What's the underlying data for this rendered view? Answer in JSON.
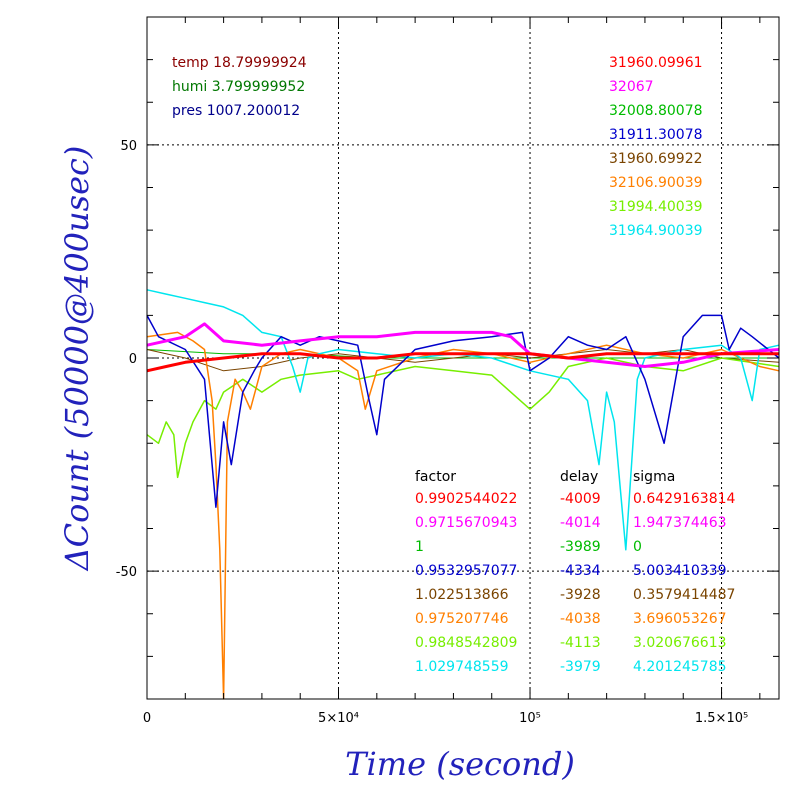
{
  "chart_data": {
    "type": "line",
    "xlabel": "Time (second)",
    "ylabel": "ΔCount (50000@400usec)",
    "xlim": [
      0,
      165000
    ],
    "ylim": [
      -80,
      80
    ],
    "xticks": [
      {
        "value": 0,
        "label": "0"
      },
      {
        "value": 50000,
        "label": "5×10⁴"
      },
      {
        "value": 100000,
        "label": "10⁵"
      },
      {
        "value": 150000,
        "label": "1.5×10⁵"
      }
    ],
    "yticks": [
      {
        "value": 50,
        "label": "50"
      },
      {
        "value": 0,
        "label": "0"
      },
      {
        "value": -50,
        "label": "-50"
      }
    ],
    "grid": true,
    "env": [
      {
        "text": "temp 18.79999924",
        "color": "#8b0000"
      },
      {
        "text": "humi 3.799999952",
        "color": "#007700"
      },
      {
        "text": "pres 1007.200012",
        "color": "#00008b"
      }
    ],
    "means": [
      "31960.09961",
      "32067",
      "32008.80078",
      "31911.30078",
      "31960.69922",
      "32106.90039",
      "31994.40039",
      "31964.90039"
    ],
    "stats_header": [
      "factor",
      "delay",
      "sigma"
    ],
    "factors": [
      "0.9902544022",
      "0.9715670943",
      "1",
      "0.9532957077",
      "1.022513866",
      "0.975207746",
      "0.9848542809",
      "1.029748559"
    ],
    "delays": [
      "-4009",
      "-4014",
      "-3989",
      "-4334",
      "-3928",
      "-4038",
      "-4113",
      "-3979"
    ],
    "sigmas": [
      "0.6429163814",
      "1.947374463",
      "0",
      "5.003410339",
      "0.3579414487",
      "3.696053267",
      "3.020676613",
      "4.201245785"
    ],
    "series": [
      {
        "color": "#ff0000",
        "values": [
          [
            0,
            -3
          ],
          [
            5000,
            -2
          ],
          [
            10000,
            -1
          ],
          [
            20000,
            0
          ],
          [
            30000,
            1
          ],
          [
            40000,
            1
          ],
          [
            50000,
            0
          ],
          [
            60000,
            0
          ],
          [
            70000,
            1
          ],
          [
            80000,
            1
          ],
          [
            90000,
            1
          ],
          [
            100000,
            1
          ],
          [
            110000,
            0
          ],
          [
            120000,
            1
          ],
          [
            130000,
            1
          ],
          [
            140000,
            1
          ],
          [
            150000,
            1
          ],
          [
            165000,
            1
          ]
        ]
      },
      {
        "color": "#ff00ff",
        "values": [
          [
            0,
            3
          ],
          [
            10000,
            5
          ],
          [
            15000,
            8
          ],
          [
            20000,
            4
          ],
          [
            30000,
            3
          ],
          [
            40000,
            4
          ],
          [
            50000,
            5
          ],
          [
            60000,
            5
          ],
          [
            70000,
            6
          ],
          [
            80000,
            6
          ],
          [
            90000,
            6
          ],
          [
            95000,
            5
          ],
          [
            100000,
            1
          ],
          [
            110000,
            0
          ],
          [
            120000,
            -1
          ],
          [
            130000,
            -2
          ],
          [
            140000,
            -1
          ],
          [
            150000,
            1
          ],
          [
            165000,
            2
          ]
        ]
      },
      {
        "color": "#00bb00",
        "values": [
          [
            0,
            2
          ],
          [
            20000,
            1
          ],
          [
            40000,
            1
          ],
          [
            60000,
            0
          ],
          [
            80000,
            0
          ],
          [
            100000,
            0
          ],
          [
            120000,
            0
          ],
          [
            140000,
            0
          ],
          [
            165000,
            0
          ]
        ]
      },
      {
        "color": "#0000cc",
        "values": [
          [
            0,
            10
          ],
          [
            3000,
            5
          ],
          [
            10000,
            2
          ],
          [
            15000,
            -5
          ],
          [
            18000,
            -35
          ],
          [
            20000,
            -15
          ],
          [
            22000,
            -25
          ],
          [
            25000,
            -8
          ],
          [
            28000,
            -3
          ],
          [
            30000,
            0
          ],
          [
            35000,
            5
          ],
          [
            40000,
            3
          ],
          [
            45000,
            5
          ],
          [
            50000,
            4
          ],
          [
            55000,
            3
          ],
          [
            58000,
            -10
          ],
          [
            60000,
            -18
          ],
          [
            62000,
            -5
          ],
          [
            70000,
            2
          ],
          [
            80000,
            4
          ],
          [
            90000,
            5
          ],
          [
            98000,
            6
          ],
          [
            100000,
            -3
          ],
          [
            105000,
            0
          ],
          [
            110000,
            5
          ],
          [
            115000,
            3
          ],
          [
            120000,
            2
          ],
          [
            125000,
            5
          ],
          [
            130000,
            -5
          ],
          [
            135000,
            -20
          ],
          [
            140000,
            5
          ],
          [
            145000,
            10
          ],
          [
            150000,
            10
          ],
          [
            152000,
            2
          ],
          [
            155000,
            7
          ],
          [
            158000,
            5
          ],
          [
            165000,
            0
          ]
        ]
      },
      {
        "color": "#7a4400",
        "values": [
          [
            0,
            2
          ],
          [
            10000,
            0
          ],
          [
            20000,
            -3
          ],
          [
            30000,
            -2
          ],
          [
            40000,
            0
          ],
          [
            50000,
            1
          ],
          [
            60000,
            0
          ],
          [
            70000,
            -1
          ],
          [
            80000,
            0
          ],
          [
            90000,
            1
          ],
          [
            100000,
            0
          ],
          [
            110000,
            1
          ],
          [
            120000,
            2
          ],
          [
            130000,
            1
          ],
          [
            140000,
            2
          ],
          [
            150000,
            0
          ],
          [
            165000,
            -1
          ]
        ]
      },
      {
        "color": "#ff7f00",
        "values": [
          [
            0,
            5
          ],
          [
            8000,
            6
          ],
          [
            12000,
            4
          ],
          [
            15000,
            2
          ],
          [
            17000,
            -10
          ],
          [
            18000,
            -25
          ],
          [
            19000,
            -45
          ],
          [
            20000,
            -80
          ],
          [
            21000,
            -15
          ],
          [
            23000,
            -5
          ],
          [
            25000,
            -8
          ],
          [
            27000,
            -12
          ],
          [
            30000,
            -2
          ],
          [
            35000,
            1
          ],
          [
            40000,
            2
          ],
          [
            50000,
            0
          ],
          [
            55000,
            -3
          ],
          [
            57000,
            -12
          ],
          [
            60000,
            -3
          ],
          [
            70000,
            0
          ],
          [
            80000,
            2
          ],
          [
            90000,
            1
          ],
          [
            100000,
            -1
          ],
          [
            110000,
            1
          ],
          [
            120000,
            3
          ],
          [
            130000,
            1
          ],
          [
            140000,
            0
          ],
          [
            150000,
            2
          ],
          [
            160000,
            -2
          ],
          [
            165000,
            -3
          ]
        ]
      },
      {
        "color": "#77ee00",
        "values": [
          [
            0,
            -18
          ],
          [
            3000,
            -20
          ],
          [
            5000,
            -15
          ],
          [
            7000,
            -18
          ],
          [
            8000,
            -28
          ],
          [
            10000,
            -20
          ],
          [
            12000,
            -15
          ],
          [
            15000,
            -10
          ],
          [
            18000,
            -12
          ],
          [
            20000,
            -8
          ],
          [
            25000,
            -5
          ],
          [
            30000,
            -8
          ],
          [
            35000,
            -5
          ],
          [
            40000,
            -4
          ],
          [
            50000,
            -3
          ],
          [
            55000,
            -5
          ],
          [
            60000,
            -4
          ],
          [
            70000,
            -2
          ],
          [
            80000,
            -3
          ],
          [
            90000,
            -4
          ],
          [
            100000,
            -12
          ],
          [
            105000,
            -8
          ],
          [
            110000,
            -2
          ],
          [
            120000,
            0
          ],
          [
            130000,
            -2
          ],
          [
            140000,
            -3
          ],
          [
            150000,
            0
          ],
          [
            165000,
            -2
          ]
        ]
      },
      {
        "color": "#00e5ee",
        "values": [
          [
            0,
            16
          ],
          [
            5000,
            15
          ],
          [
            10000,
            14
          ],
          [
            15000,
            13
          ],
          [
            20000,
            12
          ],
          [
            25000,
            10
          ],
          [
            30000,
            6
          ],
          [
            35000,
            5
          ],
          [
            38000,
            -2
          ],
          [
            40000,
            -8
          ],
          [
            42000,
            0
          ],
          [
            45000,
            1
          ],
          [
            50000,
            2
          ],
          [
            60000,
            1
          ],
          [
            70000,
            0
          ],
          [
            80000,
            1
          ],
          [
            90000,
            0
          ],
          [
            100000,
            -3
          ],
          [
            110000,
            -5
          ],
          [
            115000,
            -10
          ],
          [
            118000,
            -25
          ],
          [
            120000,
            -8
          ],
          [
            122000,
            -15
          ],
          [
            125000,
            -45
          ],
          [
            128000,
            -5
          ],
          [
            130000,
            0
          ],
          [
            140000,
            2
          ],
          [
            150000,
            3
          ],
          [
            155000,
            0
          ],
          [
            158000,
            -10
          ],
          [
            160000,
            2
          ],
          [
            165000,
            3
          ]
        ]
      }
    ]
  }
}
